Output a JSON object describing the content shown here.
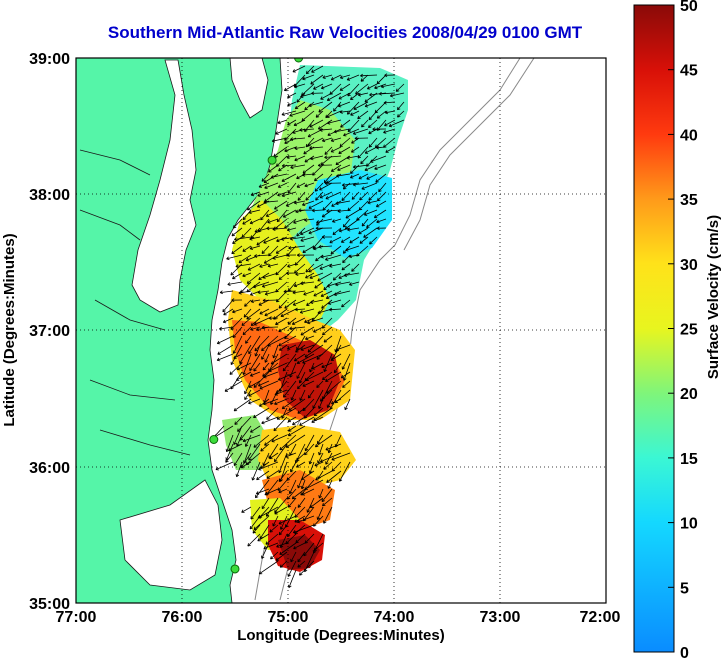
{
  "title": "Southern Mid-Atlantic Raw Velocities 2008/04/29 0100 GMT",
  "xlabel": "Longitude (Degrees:Minutes)",
  "ylabel": "Latitude (Degrees:Minutes)",
  "colorbar_label": "Surface Velocity (cm/s)",
  "x_ticks": [
    "77:00",
    "76:00",
    "75:00",
    "74:00",
    "73:00",
    "72:00"
  ],
  "y_ticks": [
    "39:00",
    "38:00",
    "37:00",
    "36:00",
    "35:00"
  ],
  "colorbar_ticks": [
    "0",
    "5",
    "10",
    "15",
    "20",
    "25",
    "30",
    "35",
    "40",
    "45",
    "50"
  ],
  "map_data": {
    "type": "vector-field",
    "lon_range": [
      -77,
      -72
    ],
    "lat_range": [
      35,
      39
    ],
    "speed_range_cm_s": [
      0,
      50
    ],
    "grid": "dotted",
    "land_color": "#55f5a8",
    "speed_regions": [
      {
        "area": "near 38.9N 74.4W",
        "speed_cm_s": 10
      },
      {
        "area": "near 38.5N 74.9W",
        "speed_cm_s": 20
      },
      {
        "area": "near 37.6N 74.8W",
        "speed_cm_s": 10
      },
      {
        "area": "near 36.7N 74.9W",
        "speed_cm_s": 45
      },
      {
        "area": "near 35.4N 75.1W",
        "speed_cm_s": 48
      }
    ],
    "station_markers": [
      {
        "lon": -74.9,
        "lat": 39.0
      },
      {
        "lon": -75.15,
        "lat": 38.25
      },
      {
        "lon": -75.7,
        "lat": 36.2
      },
      {
        "lon": -75.5,
        "lat": 35.25
      }
    ]
  }
}
